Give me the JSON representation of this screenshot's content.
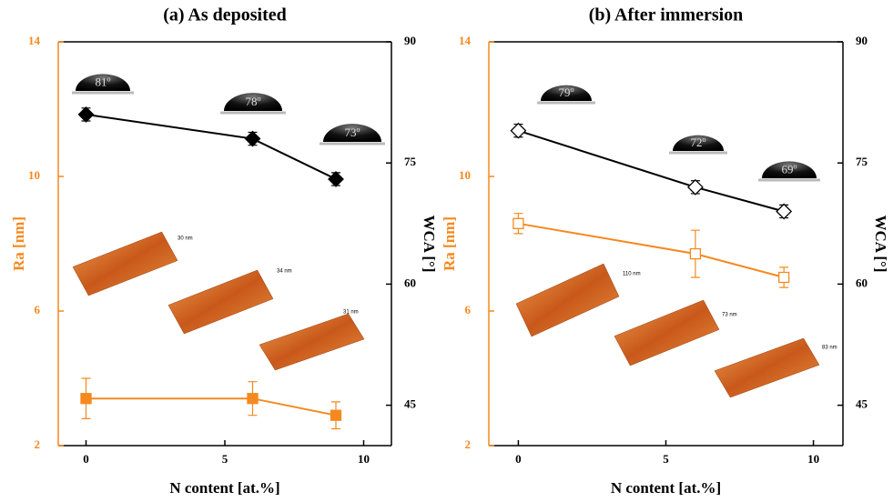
{
  "chart_data": [
    {
      "type": "line",
      "title": "(a) As deposited",
      "xlabel": "N content [at.%]",
      "ylabel": "Ra [nm]",
      "y2label": "WCA [°]",
      "x": [
        0,
        6,
        9
      ],
      "xlim": [
        -1,
        11
      ],
      "xticks": [
        0,
        5,
        10
      ],
      "ylim": [
        2,
        14
      ],
      "yticks": [
        2,
        6,
        10,
        14
      ],
      "y2lim": [
        40,
        90
      ],
      "y2ticks": [
        45,
        60,
        75,
        90
      ],
      "series": [
        {
          "color": "#f5891f",
          "marker": "square",
          "marker_filled": true,
          "values": [
            3.4,
            3.4,
            2.9
          ],
          "errors": [
            0.6,
            0.5,
            0.4
          ]
        },
        {
          "color": "#000000",
          "marker": "diamond",
          "marker_filled": true,
          "axis": "y2",
          "values": [
            81,
            78,
            73
          ],
          "errors": [
            0.8,
            0.8,
            0.8
          ]
        }
      ],
      "droplet_labels": [
        "81º",
        "78º",
        "73º"
      ],
      "afm_labels": [
        "30 nm",
        "34 nm",
        "31 nm"
      ]
    },
    {
      "type": "line",
      "title": "(b) After immersion",
      "xlabel": "N content [at.%]",
      "ylabel": "Ra [nm]",
      "y2label": "WCA [°]",
      "x": [
        0,
        6,
        9
      ],
      "xlim": [
        -1,
        11
      ],
      "xticks": [
        0,
        5,
        10
      ],
      "ylim": [
        2,
        14
      ],
      "yticks": [
        2,
        6,
        10,
        14
      ],
      "y2lim": [
        40,
        90
      ],
      "y2ticks": [
        45,
        60,
        75,
        90
      ],
      "series": [
        {
          "color": "#f5891f",
          "marker": "square",
          "marker_filled": false,
          "values": [
            8.6,
            7.7,
            7.0
          ],
          "errors": [
            0.3,
            0.7,
            0.3
          ]
        },
        {
          "color": "#000000",
          "marker": "diamond",
          "marker_filled": false,
          "axis": "y2",
          "values": [
            79,
            72,
            69
          ],
          "errors": [
            0.8,
            0.8,
            0.8
          ]
        }
      ],
      "droplet_labels": [
        "79º",
        "72º",
        "69º"
      ],
      "afm_labels": [
        "110 nm",
        "73 nm",
        "83 nm"
      ]
    }
  ]
}
